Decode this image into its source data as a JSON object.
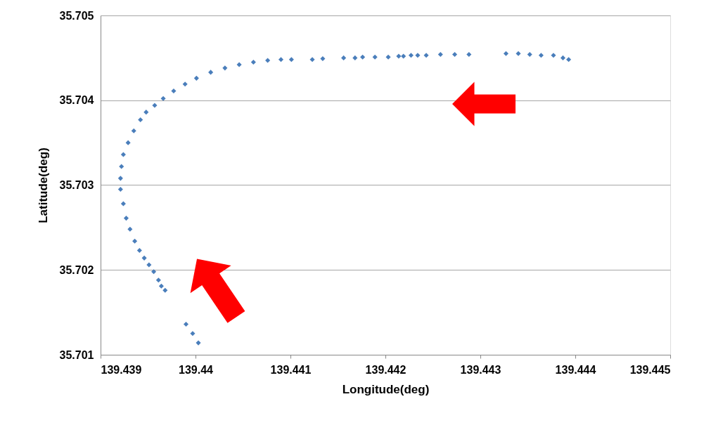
{
  "chart_data": {
    "type": "scatter",
    "xlabel": "Longitude(deg)",
    "ylabel": "Latitude(deg)",
    "xlim": [
      139.439,
      139.445
    ],
    "xticks": [
      139.439,
      139.44,
      139.441,
      139.442,
      139.443,
      139.444,
      139.445
    ],
    "ylim": [
      35.701,
      35.705
    ],
    "yticks": [
      35.701,
      35.702,
      35.703,
      35.704,
      35.705
    ],
    "grid": "y",
    "series": [
      {
        "color": "#4a7ebb",
        "marker": "diamond",
        "x": [
          139.44003,
          139.43997,
          139.4399,
          139.43968,
          139.43964,
          139.43961,
          139.43956,
          139.43951,
          139.43946,
          139.43941,
          139.43936,
          139.43931,
          139.43927,
          139.43924,
          139.43921,
          139.43921,
          139.43922,
          139.43924,
          139.43929,
          139.43935,
          139.43942,
          139.43948,
          139.43957,
          139.43966,
          139.43977,
          139.43989,
          139.44001,
          139.44016,
          139.44031,
          139.44046,
          139.44061,
          139.44076,
          139.4409,
          139.44101,
          139.44123,
          139.44134,
          139.44156,
          139.44168,
          139.44176,
          139.44189,
          139.44203,
          139.44214,
          139.44219,
          139.44227,
          139.44234,
          139.44243,
          139.44258,
          139.44273,
          139.44288,
          139.44327,
          139.4434,
          139.44352,
          139.44364,
          139.44377,
          139.44387,
          139.44393
        ],
        "values": [
          35.70114,
          35.70125,
          35.70136,
          35.70176,
          35.70181,
          35.70188,
          35.70198,
          35.70206,
          35.70214,
          35.70223,
          35.70234,
          35.70248,
          35.70261,
          35.70278,
          35.70295,
          35.70308,
          35.70322,
          35.70336,
          35.7035,
          35.70364,
          35.70377,
          35.70386,
          35.70394,
          35.70402,
          35.70411,
          35.70419,
          35.70426,
          35.70433,
          35.70438,
          35.70442,
          35.70445,
          35.70447,
          35.70448,
          35.70448,
          35.70448,
          35.70449,
          35.7045,
          35.7045,
          35.70451,
          35.70451,
          35.70451,
          35.70452,
          35.70452,
          35.70453,
          35.70453,
          35.70453,
          35.70454,
          35.70454,
          35.70454,
          35.70455,
          35.70455,
          35.70454,
          35.70453,
          35.70453,
          35.7045,
          35.70448
        ]
      }
    ]
  }
}
